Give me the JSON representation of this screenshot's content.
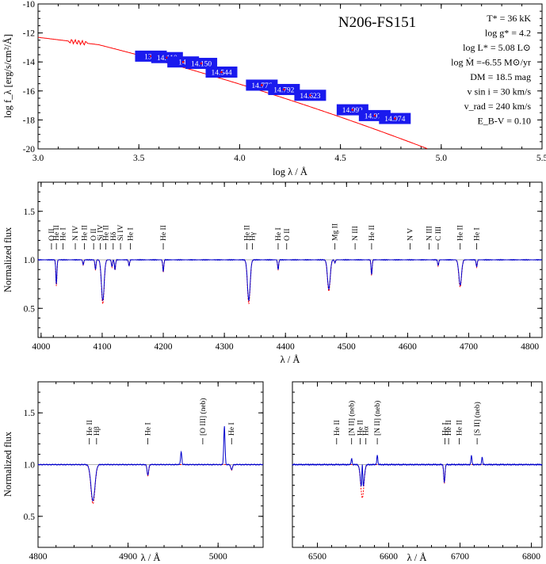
{
  "chart_data": [
    {
      "type": "line",
      "title": "N206-FS151",
      "xlabel": "log λ / Å",
      "ylabel": "log f_λ [erg/s/cm²/Å]",
      "xlim": [
        3.0,
        5.5
      ],
      "ylim": [
        -20,
        -10
      ],
      "xticks": [
        "3.0",
        "3.5",
        "4.0",
        "4.5",
        "5.0",
        "5.5"
      ],
      "yticks": [
        "-20",
        "-18",
        "-16",
        "-14",
        "-12",
        "-10"
      ],
      "params": [
        "T* = 36 kK",
        "log g* =  4.2",
        "log L* = 5.08 L⊙",
        "log Ṁ =-6.55 M⊙/yr",
        "DM = 18.5 mag",
        "v sin i = 30 km/s",
        "v_rad = 240 km/s",
        "E_B-V = 0.10"
      ],
      "photometry": [
        {
          "x": 3.56,
          "y": -13.6,
          "label": "13.9"
        },
        {
          "x": 3.64,
          "y": -13.7,
          "label": "14.110"
        },
        {
          "x": 3.72,
          "y": -14.0,
          "label": "14."
        },
        {
          "x": 3.81,
          "y": -14.1,
          "label": "14.150"
        },
        {
          "x": 3.91,
          "y": -14.7,
          "label": "14.544"
        },
        {
          "x": 4.11,
          "y": -15.6,
          "label": "14.776"
        },
        {
          "x": 4.22,
          "y": -15.9,
          "label": "14.792"
        },
        {
          "x": 4.35,
          "y": -16.3,
          "label": "14.623"
        },
        {
          "x": 4.56,
          "y": -17.3,
          "label": "14.992"
        },
        {
          "x": 4.67,
          "y": -17.7,
          "label": "14.974"
        },
        {
          "x": 4.77,
          "y": -17.9,
          "label": "14.974"
        }
      ]
    },
    {
      "type": "line",
      "xlabel": "λ / Å",
      "ylabel": "Normalized flux",
      "xlim": [
        3995,
        4820
      ],
      "ylim": [
        0.2,
        1.8
      ],
      "xticks": [
        "4000",
        "4100",
        "4200",
        "4300",
        "4400",
        "4500",
        "4600",
        "4700",
        "4800"
      ],
      "yticks": [
        "0.5",
        "1.0",
        "1.5"
      ],
      "lines": [
        {
          "x": 4025,
          "label": "He I",
          "depth": 0.75
        },
        {
          "x": 4069,
          "label": "O II",
          "depth": 0.95
        },
        {
          "x": 4089,
          "label": "Si IV",
          "depth": 0.9
        },
        {
          "x": 4101,
          "label": "Hδ",
          "depth": 0.58
        },
        {
          "x": 4116,
          "label": "Si IV",
          "depth": 0.93
        },
        {
          "x": 4121,
          "label": "He I",
          "depth": 0.9
        },
        {
          "x": 4144,
          "label": "He I",
          "depth": 0.94
        },
        {
          "x": 4200,
          "label": "He II",
          "depth": 0.88
        },
        {
          "x": 4340,
          "label": "Hγ",
          "depth": 0.58
        },
        {
          "x": 4388,
          "label": "He I",
          "depth": 0.9
        },
        {
          "x": 4471,
          "label": "He I",
          "depth": 0.7
        },
        {
          "x": 4481,
          "label": "Mg II",
          "depth": 0.97
        },
        {
          "x": 4541,
          "label": "He II",
          "depth": 0.85
        },
        {
          "x": 4650,
          "label": "C III",
          "depth": 0.94
        },
        {
          "x": 4686,
          "label": "He II",
          "depth": 0.74
        },
        {
          "x": 4713,
          "label": "He I",
          "depth": 0.93
        }
      ],
      "labels": [
        {
          "x": 4017,
          "text": "O II"
        },
        {
          "x": 4025,
          "text": "He II"
        },
        {
          "x": 4036,
          "text": "He I"
        },
        {
          "x": 4056,
          "text": "N IV"
        },
        {
          "x": 4071,
          "text": "He II"
        },
        {
          "x": 4086,
          "text": "O II"
        },
        {
          "x": 4097,
          "text": "Si IV"
        },
        {
          "x": 4106,
          "text": "He II"
        },
        {
          "x": 4118,
          "text": "Hδ"
        },
        {
          "x": 4130,
          "text": "Si IV"
        },
        {
          "x": 4146,
          "text": "He I"
        },
        {
          "x": 4200,
          "text": "He II"
        },
        {
          "x": 4337,
          "text": "He II"
        },
        {
          "x": 4346,
          "text": "Hγ"
        },
        {
          "x": 4388,
          "text": "He I"
        },
        {
          "x": 4402,
          "text": "O II"
        },
        {
          "x": 4481,
          "text": "Mg II"
        },
        {
          "x": 4514,
          "text": "N III"
        },
        {
          "x": 4541,
          "text": "He II"
        },
        {
          "x": 4604,
          "text": "N V"
        },
        {
          "x": 4635,
          "text": "N III"
        },
        {
          "x": 4650,
          "text": "C III"
        },
        {
          "x": 4686,
          "text": "He II"
        },
        {
          "x": 4713,
          "text": "He I"
        }
      ]
    },
    {
      "type": "line",
      "xlabel": "λ / Å",
      "ylabel": "Normalized flux",
      "xlim": [
        4800,
        5050
      ],
      "ylim": [
        0.2,
        1.8
      ],
      "xticks": [
        "4800",
        "4900",
        "5000"
      ],
      "yticks": [
        "0.5",
        "1.0",
        "1.5"
      ],
      "lines": [
        {
          "x": 4861,
          "label": "Hβ",
          "depth": 0.65
        },
        {
          "x": 4922,
          "label": "He I",
          "depth": 0.9
        },
        {
          "x": 5015,
          "label": "He I",
          "depth": 0.95
        }
      ],
      "emission": [
        {
          "x": 4959,
          "height": 1.12
        },
        {
          "x": 5007,
          "height": 1.37
        }
      ],
      "labels": [
        {
          "x": 4857,
          "text": "He II"
        },
        {
          "x": 4865,
          "text": "Hβ"
        },
        {
          "x": 4922,
          "text": "He I"
        },
        {
          "x": 4983,
          "text": "[O III] (neb)"
        },
        {
          "x": 5015,
          "text": "He I"
        }
      ]
    },
    {
      "type": "line",
      "xlabel": "λ / Å",
      "ylabel": "",
      "xlim": [
        6465,
        6815
      ],
      "ylim": [
        0.2,
        1.8
      ],
      "xticks": [
        "6500",
        "6600",
        "6700",
        "6800"
      ],
      "yticks": [],
      "lines": [
        {
          "x": 6563,
          "label": "Hα",
          "depth": 0.7
        },
        {
          "x": 6678,
          "label": "He I",
          "depth": 0.83
        }
      ],
      "emission": [
        {
          "x": 6548,
          "height": 1.06
        },
        {
          "x": 6563,
          "height": 1.3
        },
        {
          "x": 6584,
          "height": 1.09
        },
        {
          "x": 6716,
          "height": 1.09
        },
        {
          "x": 6731,
          "height": 1.07
        }
      ],
      "labels": [
        {
          "x": 6527,
          "text": "He II"
        },
        {
          "x": 6548,
          "text": "[N II] (neb)"
        },
        {
          "x": 6560,
          "text": "He II"
        },
        {
          "x": 6568,
          "text": "Hα"
        },
        {
          "x": 6584,
          "text": "[N II] (neb)"
        },
        {
          "x": 6679,
          "text": "He I"
        },
        {
          "x": 6684,
          "text": "He II"
        },
        {
          "x": 6699,
          "text": "He II"
        },
        {
          "x": 6724,
          "text": "[S II] (neb)"
        }
      ]
    }
  ],
  "colors": {
    "model": "#ff0000",
    "observed": "#0000cc",
    "box": "#1a1aee",
    "unity": "#9a9a9a"
  }
}
